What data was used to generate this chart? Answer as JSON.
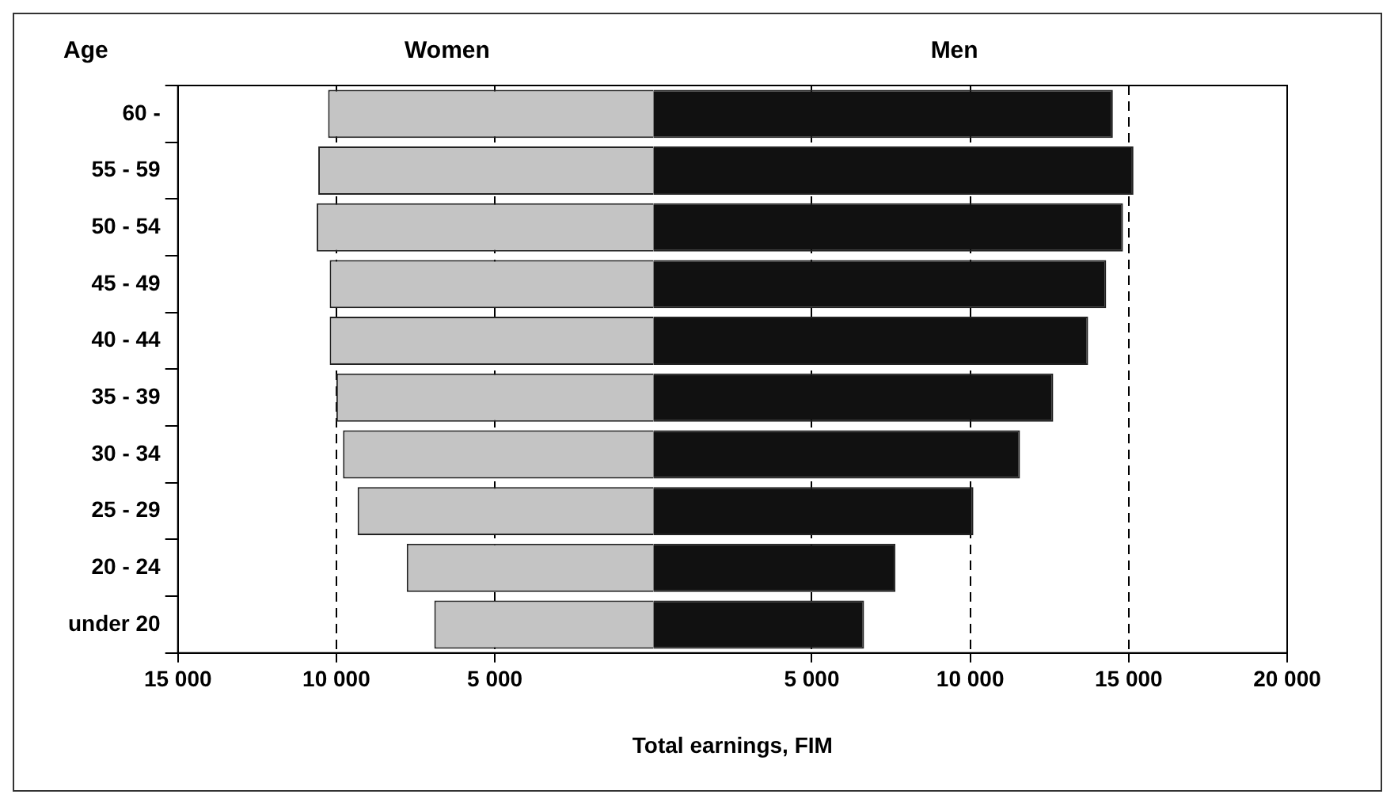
{
  "chart_data": {
    "type": "bar",
    "orientation": "horizontal",
    "stacked": true,
    "ylabel": "Age",
    "xlabel": "Total earnings, FIM",
    "categories": [
      "60 -",
      "55 - 59",
      "50 - 54",
      "45 - 49",
      "40 - 44",
      "35 - 39",
      "30 - 34",
      "25 - 29",
      "20 - 24",
      "under 20"
    ],
    "series": [
      {
        "name": "Women",
        "color": "#c4c4c4",
        "values": [
          -10260,
          -10570,
          -10620,
          -10210,
          -10210,
          -10000,
          -9790,
          -9330,
          -7780,
          -6910
        ]
      },
      {
        "name": "Men",
        "color": "#111111",
        "values": [
          14500,
          15150,
          14820,
          14290,
          13720,
          12620,
          11570,
          10100,
          7640,
          6650
        ]
      }
    ],
    "xlim": [
      -15000,
      20000
    ],
    "xticks": [
      {
        "value": -15000,
        "label": "15 000"
      },
      {
        "value": -10000,
        "label": "10 000"
      },
      {
        "value": -5000,
        "label": "5 000"
      },
      {
        "value": 5000,
        "label": "5 000"
      },
      {
        "value": 10000,
        "label": "10 000"
      },
      {
        "value": 15000,
        "label": "15 000"
      },
      {
        "value": 20000,
        "label": "20 000"
      }
    ],
    "grid": "x",
    "line_style": "dashed",
    "legend": false
  }
}
